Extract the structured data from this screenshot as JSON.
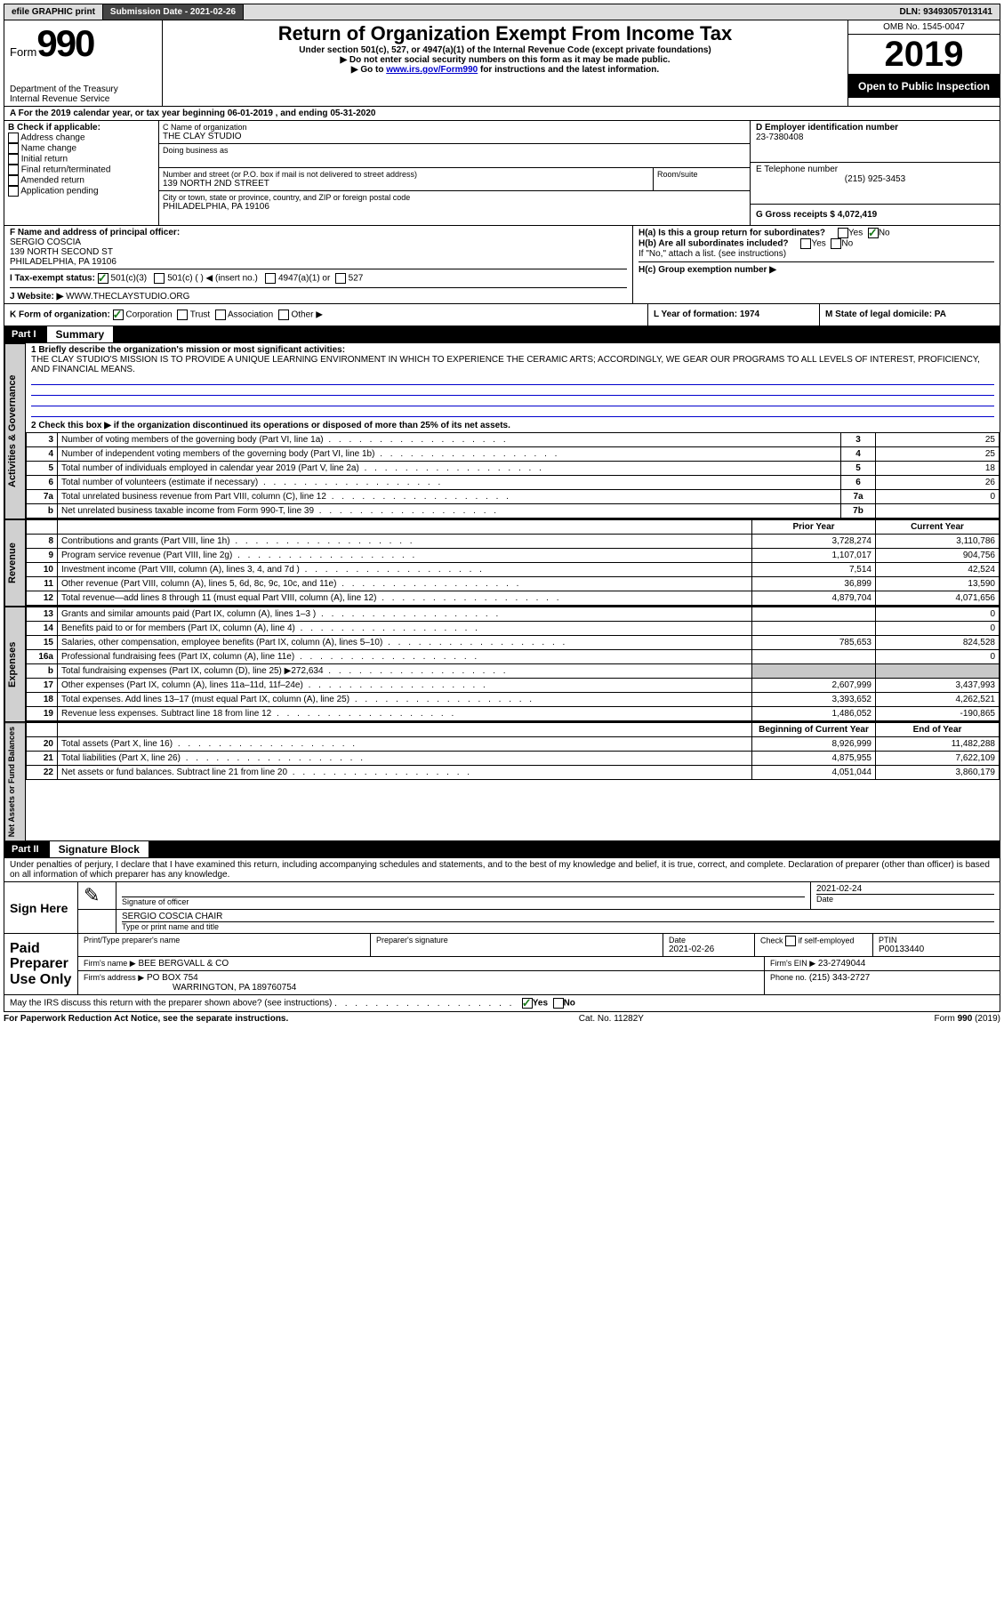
{
  "top": {
    "efile": "efile GRAPHIC print",
    "sub_label": "Submission Date - 2021-02-26",
    "dln": "DLN: 93493057013141"
  },
  "hdr": {
    "form_word": "Form",
    "form_num": "990",
    "dept": "Department of the Treasury\nInternal Revenue Service",
    "title": "Return of Organization Exempt From Income Tax",
    "sub1": "Under section 501(c), 527, or 4947(a)(1) of the Internal Revenue Code (except private foundations)",
    "sub2": "▶ Do not enter social security numbers on this form as it may be made public.",
    "sub3_pre": "▶ Go to ",
    "sub3_link": "www.irs.gov/Form990",
    "sub3_post": " for instructions and the latest information.",
    "omb": "OMB No. 1545-0047",
    "year": "2019",
    "inspection": "Open to Public Inspection"
  },
  "a": {
    "line": "A For the 2019 calendar year, or tax year beginning 06-01-2019   , and ending 05-31-2020"
  },
  "b": {
    "label": "B Check if applicable:",
    "o1": "Address change",
    "o2": "Name change",
    "o3": "Initial return",
    "o4": "Final return/terminated",
    "o5": "Amended return",
    "o6": "Application pending"
  },
  "c": {
    "name_label": "C Name of organization",
    "name": "THE CLAY STUDIO",
    "dba_label": "Doing business as",
    "addr_label": "Number and street (or P.O. box if mail is not delivered to street address)",
    "room_label": "Room/suite",
    "addr": "139 NORTH 2ND STREET",
    "city_label": "City or town, state or province, country, and ZIP or foreign postal code",
    "city": "PHILADELPHIA, PA  19106"
  },
  "d": {
    "label": "D Employer identification number",
    "val": "23-7380408"
  },
  "e": {
    "label": "E Telephone number",
    "val": "(215) 925-3453"
  },
  "g": {
    "label": "G Gross receipts $ 4,072,419"
  },
  "f": {
    "label": "F  Name and address of principal officer:",
    "name": "SERGIO COSCIA",
    "addr1": "139 NORTH SECOND ST",
    "addr2": "PHILADELPHIA, PA  19106"
  },
  "h": {
    "a": "H(a)  Is this a group return for subordinates?",
    "b": "H(b)  Are all subordinates included?",
    "note": "If \"No,\" attach a list. (see instructions)",
    "c": "H(c)  Group exemption number ▶",
    "yes": "Yes",
    "no": "No"
  },
  "i": {
    "label": "I  Tax-exempt status:",
    "o1": "501(c)(3)",
    "o2": "501(c) (   ) ◀ (insert no.)",
    "o3": "4947(a)(1) or",
    "o4": "527"
  },
  "j": {
    "label": "J  Website: ▶",
    "val": "WWW.THECLAYSTUDIO.ORG"
  },
  "k": {
    "label": "K Form of organization:",
    "o1": "Corporation",
    "o2": "Trust",
    "o3": "Association",
    "o4": "Other ▶"
  },
  "l": {
    "label": "L Year of formation: 1974"
  },
  "m": {
    "label": "M State of legal domicile: PA"
  },
  "p1": {
    "tag": "Part I",
    "title": "Summary",
    "q1_label": "1 Briefly describe the organization's mission or most significant activities:",
    "q1_text": "THE CLAY STUDIO'S MISSION IS TO PROVIDE A UNIQUE LEARNING ENVIRONMENT IN WHICH TO EXPERIENCE THE CERAMIC ARTS; ACCORDINGLY, WE GEAR OUR PROGRAMS TO ALL LEVELS OF INTEREST, PROFICIENCY, AND FINANCIAL MEANS.",
    "q2": "2   Check this box ▶        if the organization discontinued its operations or disposed of more than 25% of its net assets.",
    "vtab_ag": "Activities & Governance",
    "vtab_rev": "Revenue",
    "vtab_exp": "Expenses",
    "vtab_na": "Net Assets or Fund Balances"
  },
  "lines_ag": [
    {
      "n": "3",
      "d": "Number of voting members of the governing body (Part VI, line 1a)",
      "box": "3",
      "v": "25"
    },
    {
      "n": "4",
      "d": "Number of independent voting members of the governing body (Part VI, line 1b)",
      "box": "4",
      "v": "25"
    },
    {
      "n": "5",
      "d": "Total number of individuals employed in calendar year 2019 (Part V, line 2a)",
      "box": "5",
      "v": "18"
    },
    {
      "n": "6",
      "d": "Total number of volunteers (estimate if necessary)",
      "box": "6",
      "v": "26"
    },
    {
      "n": "7a",
      "d": "Total unrelated business revenue from Part VIII, column (C), line 12",
      "box": "7a",
      "v": "0"
    },
    {
      "n": "b",
      "d": "Net unrelated business taxable income from Form 990-T, line 39",
      "box": "7b",
      "v": ""
    }
  ],
  "col_hdr": {
    "py": "Prior Year",
    "cy": "Current Year"
  },
  "lines_rev": [
    {
      "n": "8",
      "d": "Contributions and grants (Part VIII, line 1h)",
      "py": "3,728,274",
      "cy": "3,110,786"
    },
    {
      "n": "9",
      "d": "Program service revenue (Part VIII, line 2g)",
      "py": "1,107,017",
      "cy": "904,756"
    },
    {
      "n": "10",
      "d": "Investment income (Part VIII, column (A), lines 3, 4, and 7d )",
      "py": "7,514",
      "cy": "42,524"
    },
    {
      "n": "11",
      "d": "Other revenue (Part VIII, column (A), lines 5, 6d, 8c, 9c, 10c, and 11e)",
      "py": "36,899",
      "cy": "13,590"
    },
    {
      "n": "12",
      "d": "Total revenue—add lines 8 through 11 (must equal Part VIII, column (A), line 12)",
      "py": "4,879,704",
      "cy": "4,071,656"
    }
  ],
  "lines_exp": [
    {
      "n": "13",
      "d": "Grants and similar amounts paid (Part IX, column (A), lines 1–3 )",
      "py": "",
      "cy": "0"
    },
    {
      "n": "14",
      "d": "Benefits paid to or for members (Part IX, column (A), line 4)",
      "py": "",
      "cy": "0"
    },
    {
      "n": "15",
      "d": "Salaries, other compensation, employee benefits (Part IX, column (A), lines 5–10)",
      "py": "785,653",
      "cy": "824,528"
    },
    {
      "n": "16a",
      "d": "Professional fundraising fees (Part IX, column (A), line 11e)",
      "py": "",
      "cy": "0"
    },
    {
      "n": "b",
      "d": "Total fundraising expenses (Part IX, column (D), line 25) ▶272,634",
      "py": "",
      "cy": "",
      "shade": true
    },
    {
      "n": "17",
      "d": "Other expenses (Part IX, column (A), lines 11a–11d, 11f–24e)",
      "py": "2,607,999",
      "cy": "3,437,993"
    },
    {
      "n": "18",
      "d": "Total expenses. Add lines 13–17 (must equal Part IX, column (A), line 25)",
      "py": "3,393,652",
      "cy": "4,262,521"
    },
    {
      "n": "19",
      "d": "Revenue less expenses. Subtract line 18 from line 12",
      "py": "1,486,052",
      "cy": "-190,865"
    }
  ],
  "col_hdr2": {
    "py": "Beginning of Current Year",
    "cy": "End of Year"
  },
  "lines_na": [
    {
      "n": "20",
      "d": "Total assets (Part X, line 16)",
      "py": "8,926,999",
      "cy": "11,482,288"
    },
    {
      "n": "21",
      "d": "Total liabilities (Part X, line 26)",
      "py": "4,875,955",
      "cy": "7,622,109"
    },
    {
      "n": "22",
      "d": "Net assets or fund balances. Subtract line 21 from line 20",
      "py": "4,051,044",
      "cy": "3,860,179"
    }
  ],
  "p2": {
    "tag": "Part II",
    "title": "Signature Block",
    "decl": "Under penalties of perjury, I declare that I have examined this return, including accompanying schedules and statements, and to the best of my knowledge and belief, it is true, correct, and complete. Declaration of preparer (other than officer) is based on all information of which preparer has any knowledge."
  },
  "sig": {
    "sign_here": "Sign Here",
    "sig_officer": "Signature of officer",
    "date": "Date",
    "date_val": "2021-02-24",
    "name_title": "SERGIO COSCIA  CHAIR",
    "name_title_label": "Type or print name and title",
    "paid": "Paid Preparer Use Only",
    "pt_name": "Print/Type preparer's name",
    "pt_sig": "Preparer's signature",
    "pt_date": "Date",
    "pt_date_val": "2021-02-26",
    "pt_check": "Check        if self-employed",
    "ptin_label": "PTIN",
    "ptin": "P00133440",
    "firm_name_label": "Firm's name    ▶",
    "firm_name": "BEE BERGVALL & CO",
    "firm_ein_label": "Firm's EIN ▶",
    "firm_ein": "23-2749044",
    "firm_addr_label": "Firm's address ▶",
    "firm_addr1": "PO BOX 754",
    "firm_addr2": "WARRINGTON, PA  189760754",
    "phone_label": "Phone no.",
    "phone": "(215) 343-2727",
    "may_discuss": "May the IRS discuss this return with the preparer shown above? (see instructions)",
    "yes": "Yes",
    "no": "No"
  },
  "footer": {
    "left": "For Paperwork Reduction Act Notice, see the separate instructions.",
    "mid": "Cat. No. 11282Y",
    "right": "Form 990 (2019)"
  }
}
